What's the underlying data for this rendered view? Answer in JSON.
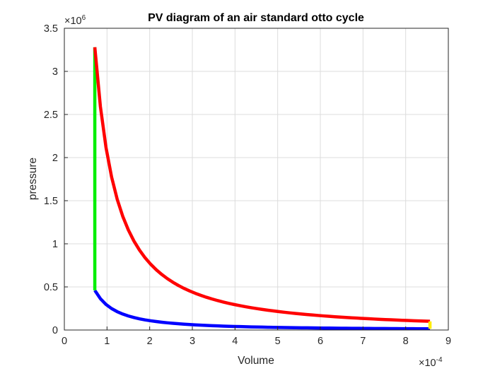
{
  "chart_data": {
    "type": "line",
    "title": "PV diagram of an air standard otto cycle",
    "xlabel": "Volume",
    "ylabel": "pressure",
    "xlim": [
      0,
      0.0009
    ],
    "ylim": [
      0,
      3500000
    ],
    "x_multiplier": "×10",
    "x_multiplier_exp": "-4",
    "y_multiplier": "×10",
    "y_multiplier_exp": "6",
    "x_ticks": [
      0,
      0.0001,
      0.0002,
      0.0003,
      0.0004,
      0.0005,
      0.0006,
      0.0007,
      0.0008,
      0.0009
    ],
    "x_tick_labels": [
      "0",
      "1",
      "2",
      "3",
      "4",
      "5",
      "6",
      "7",
      "8",
      "9"
    ],
    "y_ticks": [
      0,
      500000,
      1000000,
      1500000,
      2000000,
      2500000,
      3000000,
      3500000
    ],
    "y_tick_labels": [
      "0",
      "0.5",
      "1",
      "1.5",
      "2",
      "2.5",
      "3",
      "3.5"
    ],
    "grid": true,
    "curve_samples": 60,
    "series": [
      {
        "kind": "polytropic",
        "color": "#0000ff",
        "v_start": 7.14e-05,
        "v_end": 0.000857,
        "p_start": 460000,
        "p_end": 14500,
        "n": 1.4
      },
      {
        "kind": "line",
        "color": "#00ee00",
        "x": [
          7.14e-05,
          7.14e-05
        ],
        "y": [
          460000,
          3280000
        ]
      },
      {
        "kind": "polytropic",
        "color": "#ff0000",
        "v_start": 7.14e-05,
        "v_end": 0.000857,
        "p_start": 3280000,
        "p_end": 100000,
        "n": 1.4
      },
      {
        "kind": "line",
        "color": "#ffee00",
        "x": [
          0.000857,
          0.000857
        ],
        "y": [
          100000,
          14500
        ]
      }
    ]
  }
}
